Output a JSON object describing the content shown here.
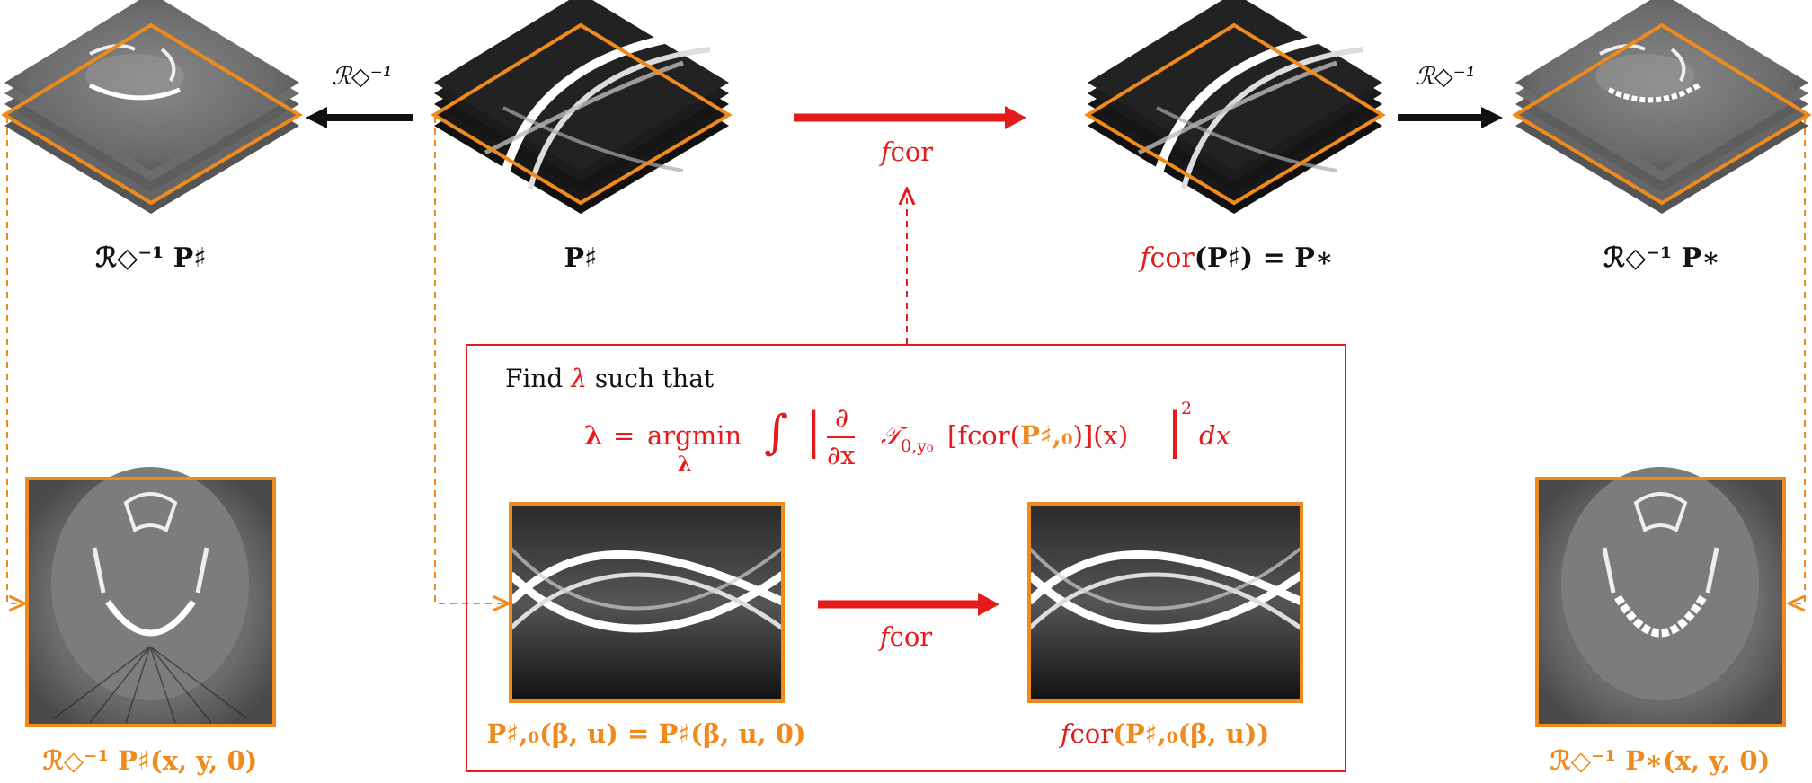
{
  "colors": {
    "red": "#e31b1b",
    "orange": "#f08a1c",
    "black": "#111111"
  },
  "top_row": {
    "recon_artifact_label": "ℛ◇⁻¹ P♯",
    "sinogram_stack_label": "P♯",
    "corrected_stack_label_prefix": "f",
    "corrected_stack_label_sub": "cor",
    "corrected_stack_label_rest": "(P♯) = P∗",
    "recon_corrected_label": "ℛ◇⁻¹ P∗",
    "inverse_op_left": "ℛ◇⁻¹",
    "inverse_op_right": "ℛ◇⁻¹",
    "fcor_top_f": "f",
    "fcor_top_sub": "cor"
  },
  "find_box": {
    "line1_a": "Find",
    "line1_lambda": "λ",
    "line1_b": "such that",
    "equation": "λ = argminₓ ∫ | ∂/∂x 𝒯₀,y₀[fcor(P♯,₀)](x) |² dx",
    "eq_lambda": "λ",
    "eq_eq": "=",
    "eq_argmin": "argmin",
    "eq_argmin_sub": "λ",
    "eq_int": "∫",
    "eq_partial_num": "∂",
    "eq_partial_den": "∂x",
    "eq_T": "𝒯",
    "eq_T_sub": "0,y₀",
    "eq_body_a": "[f",
    "eq_body_cor": "cor",
    "eq_body_b": "(",
    "eq_body_P": "P♯,₀",
    "eq_body_c": ")](x)",
    "eq_sq": "2",
    "eq_dx": "dx",
    "sino_left_label": "P♯,₀(β, u) = P♯(β, u, 0)",
    "sino_right_f": "f",
    "sino_right_cor": "cor",
    "sino_right_rest": "(P♯,₀(β, u))",
    "fcor_mid_f": "f",
    "fcor_mid_sub": "cor"
  },
  "bottom_labels": {
    "left": "ℛ◇⁻¹ P♯(x, y, 0)",
    "right": "ℛ◇⁻¹ P∗(x, y, 0)"
  }
}
